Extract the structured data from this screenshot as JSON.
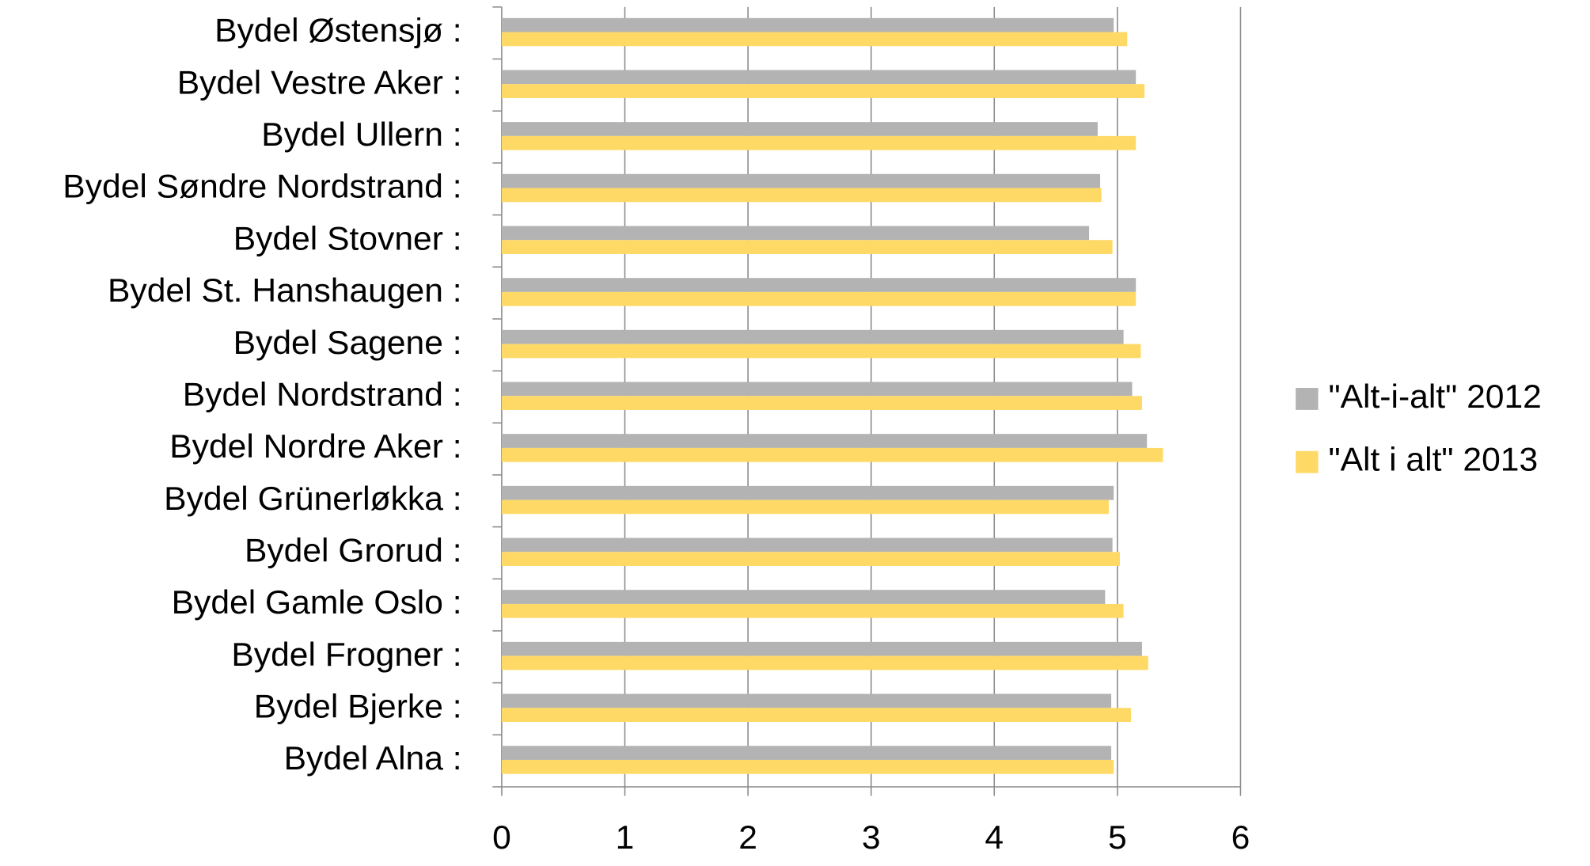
{
  "chart_data": {
    "type": "barh",
    "categories": [
      "Bydel Østensjø :",
      "Bydel Vestre Aker :",
      "Bydel Ullern :",
      "Bydel Søndre Nordstrand :",
      "Bydel Stovner :",
      "Bydel St. Hanshaugen :",
      "Bydel Sagene :",
      "Bydel Nordstrand :",
      "Bydel Nordre Aker :",
      "Bydel Grünerløkka :",
      "Bydel Grorud :",
      "Bydel Gamle Oslo :",
      "Bydel Frogner :",
      "Bydel Bjerke :",
      "Bydel Alna :"
    ],
    "series": [
      {
        "name": "\"Alt-i-alt\" 2012",
        "color": "#b3b3b3",
        "values": [
          4.97,
          5.15,
          4.84,
          4.86,
          4.77,
          5.15,
          5.05,
          5.12,
          5.24,
          4.97,
          4.96,
          4.9,
          5.2,
          4.95,
          4.95
        ]
      },
      {
        "name": "\"Alt i alt\" 2013",
        "color": "#ffd966",
        "values": [
          5.08,
          5.22,
          5.15,
          4.87,
          4.96,
          5.15,
          5.19,
          5.2,
          5.37,
          4.93,
          5.02,
          5.05,
          5.25,
          5.11,
          4.97
        ]
      }
    ],
    "xlim": [
      0,
      6
    ],
    "xticks": [
      0,
      1,
      2,
      3,
      4,
      5,
      6
    ],
    "grid": true,
    "legend": "right"
  }
}
